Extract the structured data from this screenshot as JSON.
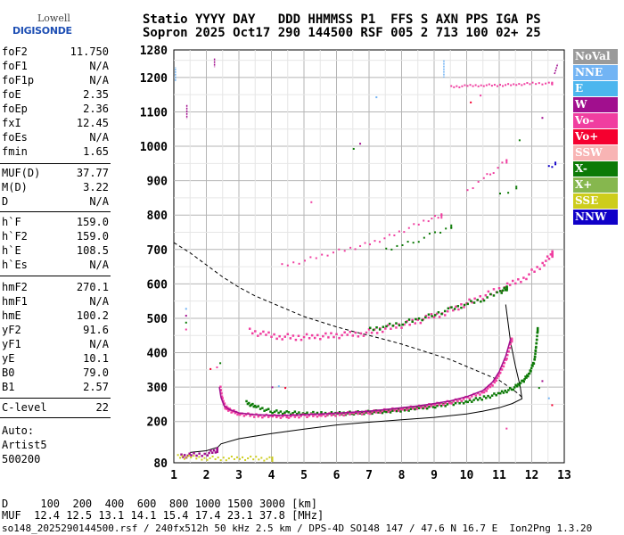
{
  "logo": {
    "line1": "Lowell",
    "line2": "DIGISONDE"
  },
  "header": {
    "line1": "Statio YYYY DAY   DDD HHMMSS P1  FFS S AXN PPS IGA PS",
    "line2": "Sopron 2025 Oct17 290 144500 RSF 005 2 713 100 02+ 25"
  },
  "params": [
    [
      {
        "k": "foF2",
        "v": "11.750"
      },
      {
        "k": "foF1",
        "v": "N/A"
      },
      {
        "k": "foF1p",
        "v": "N/A"
      },
      {
        "k": "foE",
        "v": "2.35"
      },
      {
        "k": "foEp",
        "v": "2.36"
      },
      {
        "k": "fxI",
        "v": "12.45"
      },
      {
        "k": "foEs",
        "v": "N/A"
      },
      {
        "k": "fmin",
        "v": "1.65"
      }
    ],
    [
      {
        "k": "MUF(D)",
        "v": "37.77"
      },
      {
        "k": "M(D)",
        "v": "3.22"
      },
      {
        "k": "D",
        "v": "N/A"
      }
    ],
    [
      {
        "k": "h`F",
        "v": "159.0"
      },
      {
        "k": "h`F2",
        "v": "159.0"
      },
      {
        "k": "h`E",
        "v": "108.5"
      },
      {
        "k": "h`Es",
        "v": "N/A"
      }
    ],
    [
      {
        "k": "hmF2",
        "v": "270.1"
      },
      {
        "k": "hmF1",
        "v": "N/A"
      },
      {
        "k": "hmE",
        "v": "100.2"
      },
      {
        "k": "yF2",
        "v": "91.6"
      },
      {
        "k": "yF1",
        "v": "N/A"
      },
      {
        "k": "yE",
        "v": "10.1"
      },
      {
        "k": "B0",
        "v": "79.0"
      },
      {
        "k": "B1",
        "v": "2.57"
      }
    ],
    [
      {
        "k": "C-level",
        "v": "22"
      }
    ]
  ],
  "auto": {
    "line1": "Auto:",
    "line2": "Artist5",
    "line3": "500200"
  },
  "legend": [
    {
      "label": "NoVal",
      "color": "#9a9a9a"
    },
    {
      "label": "NNE",
      "color": "#72b4f4"
    },
    {
      "label": "E",
      "color": "#4cb6ee"
    },
    {
      "label": "W",
      "color": "#a10f8e"
    },
    {
      "label": "Vo-",
      "color": "#f03ea0"
    },
    {
      "label": "Vo+",
      "color": "#f5002f"
    },
    {
      "label": "SSW",
      "color": "#f8b4b4"
    },
    {
      "label": "X-",
      "color": "#0c7a06"
    },
    {
      "label": "X+",
      "color": "#86b74e"
    },
    {
      "label": "SSE",
      "color": "#cdcd1c"
    },
    {
      "label": "NNW",
      "color": "#1000c8"
    }
  ],
  "footer": {
    "line1": "D     100  200  400  600  800 1000 1500 3000 [km]",
    "line2": "MUF  12.4 12.5 13.1 14.1 15.4 17.4 23.1 37.8 [MHz]",
    "line3": "so148_2025290144500.rsf / 240fx512h 50 kHz 2.5 km / DPS-4D SO148 147 / 47.6 N 16.7 E  Ion2Png 1.3.20"
  },
  "chart_data": {
    "type": "scatter",
    "xlabel": "",
    "ylabel": "",
    "xlim": [
      1,
      13
    ],
    "ylim": [
      80,
      1280
    ],
    "xticks": [
      1,
      2,
      3,
      4,
      5,
      6,
      7,
      8,
      9,
      10,
      11,
      12,
      13
    ],
    "yticks": [
      80,
      200,
      300,
      400,
      500,
      600,
      700,
      800,
      900,
      1000,
      1100,
      1200,
      1280
    ],
    "grid": true,
    "o_trace": [
      [
        2.4,
        300
      ],
      [
        2.45,
        270
      ],
      [
        2.55,
        245
      ],
      [
        2.7,
        235
      ],
      [
        3,
        225
      ],
      [
        3.5,
        220
      ],
      [
        4,
        218
      ],
      [
        4.5,
        218
      ],
      [
        5,
        220
      ],
      [
        5.5,
        222
      ],
      [
        6,
        224
      ],
      [
        6.5,
        227
      ],
      [
        7,
        230
      ],
      [
        7.5,
        235
      ],
      [
        8,
        240
      ],
      [
        8.5,
        245
      ],
      [
        9,
        252
      ],
      [
        9.5,
        260
      ],
      [
        10,
        272
      ],
      [
        10.5,
        290
      ],
      [
        10.8,
        315
      ],
      [
        11,
        345
      ],
      [
        11.2,
        390
      ],
      [
        11.35,
        440
      ]
    ],
    "x_trace": [
      [
        3.2,
        258
      ],
      [
        3.5,
        245
      ],
      [
        4,
        232
      ],
      [
        4.5,
        228
      ],
      [
        5,
        227
      ],
      [
        5.5,
        226
      ],
      [
        6,
        226
      ],
      [
        6.5,
        228
      ],
      [
        7,
        230
      ],
      [
        7.5,
        233
      ],
      [
        8,
        237
      ],
      [
        8.5,
        242
      ],
      [
        9,
        248
      ],
      [
        9.5,
        255
      ],
      [
        10,
        262
      ],
      [
        10.5,
        272
      ],
      [
        11,
        285
      ],
      [
        11.4,
        300
      ],
      [
        11.7,
        320
      ],
      [
        11.9,
        345
      ],
      [
        12.05,
        380
      ],
      [
        12.1,
        420
      ],
      [
        12.15,
        470
      ]
    ],
    "o_high": [
      [
        3.3,
        465
      ],
      [
        3.8,
        455
      ],
      [
        4.3,
        450
      ],
      [
        4.8,
        448
      ],
      [
        5.3,
        450
      ],
      [
        5.8,
        452
      ],
      [
        6.3,
        455
      ],
      [
        6.8,
        460
      ],
      [
        7.3,
        470
      ],
      [
        7.8,
        480
      ],
      [
        8.3,
        490
      ],
      [
        8.8,
        505
      ],
      [
        9.3,
        520
      ],
      [
        9.8,
        540
      ],
      [
        10.3,
        560
      ],
      [
        10.8,
        580
      ],
      [
        11.3,
        600
      ],
      [
        11.8,
        625
      ],
      [
        12.3,
        660
      ],
      [
        12.6,
        690
      ]
    ],
    "x_high": [
      [
        7,
        470
      ],
      [
        7.5,
        480
      ],
      [
        8,
        490
      ],
      [
        8.5,
        500
      ],
      [
        9,
        515
      ],
      [
        9.5,
        530
      ],
      [
        10,
        545
      ],
      [
        10.5,
        560
      ],
      [
        11,
        580
      ],
      [
        11.2,
        590
      ]
    ],
    "o_third": [
      [
        4.3,
        655
      ],
      [
        5,
        670
      ],
      [
        5.7,
        690
      ],
      [
        6.4,
        705
      ],
      [
        7,
        720
      ],
      [
        7.6,
        740
      ],
      [
        8.2,
        765
      ],
      [
        8.8,
        790
      ],
      [
        9.2,
        800
      ]
    ],
    "x_third": [
      [
        7.5,
        700
      ],
      [
        8,
        715
      ],
      [
        8.5,
        730
      ],
      [
        9,
        750
      ],
      [
        9.5,
        770
      ]
    ],
    "o_upper": [
      [
        10,
        870
      ],
      [
        10.5,
        910
      ],
      [
        10.8,
        930
      ],
      [
        11.2,
        960
      ]
    ],
    "x_upper": [
      [
        11,
        860
      ],
      [
        11.5,
        880
      ]
    ],
    "nnw_upper": [
      [
        12.5,
        940
      ],
      [
        12.7,
        950
      ]
    ],
    "pink_1180": [
      [
        9.5,
        1175
      ],
      [
        10,
        1178
      ],
      [
        10.5,
        1180
      ],
      [
        11,
        1180
      ],
      [
        11.5,
        1182
      ],
      [
        12,
        1185
      ],
      [
        12.6,
        1185
      ]
    ],
    "profile": [
      [
        1.5,
        110
      ],
      [
        2,
        115
      ],
      [
        2.35,
        125
      ],
      [
        2.45,
        135
      ],
      [
        3,
        150
      ],
      [
        4,
        165
      ],
      [
        5,
        178
      ],
      [
        6,
        190
      ],
      [
        7,
        198
      ],
      [
        8,
        205
      ],
      [
        9,
        212
      ],
      [
        10,
        222
      ],
      [
        10.5,
        230
      ],
      [
        11,
        240
      ],
      [
        11.4,
        252
      ],
      [
        11.7,
        266
      ],
      [
        11.65,
        300
      ],
      [
        11.5,
        360
      ],
      [
        11.35,
        430
      ],
      [
        11.2,
        540
      ]
    ],
    "model": [
      [
        1,
        720
      ],
      [
        1.5,
        690
      ],
      [
        2,
        655
      ],
      [
        2.5,
        620
      ],
      [
        3,
        590
      ],
      [
        3.5,
        565
      ],
      [
        4,
        545
      ],
      [
        4.5,
        525
      ],
      [
        5,
        505
      ],
      [
        5.5,
        490
      ],
      [
        6,
        475
      ],
      [
        6.5,
        462
      ],
      [
        7,
        450
      ],
      [
        7.5,
        438
      ],
      [
        8,
        425
      ],
      [
        8.5,
        410
      ],
      [
        9,
        395
      ],
      [
        9.5,
        380
      ],
      [
        10,
        360
      ],
      [
        10.5,
        340
      ],
      [
        11,
        320
      ],
      [
        11.3,
        300
      ],
      [
        11.6,
        280
      ],
      [
        11.7,
        270
      ]
    ],
    "e_layer": [
      [
        1.2,
        102
      ],
      [
        1.5,
        105
      ],
      [
        2,
        110
      ],
      [
        2.3,
        120
      ]
    ],
    "sse": [
      [
        1.1,
        100
      ],
      [
        1.5,
        98
      ],
      [
        2,
        96
      ],
      [
        2.5,
        95
      ],
      [
        3,
        96
      ],
      [
        3.5,
        95
      ],
      [
        4,
        93
      ]
    ],
    "e_spikes": [
      [
        1.4,
        1120
      ],
      [
        1.4,
        1080
      ],
      [
        1.05,
        1190
      ],
      [
        1.05,
        1230
      ],
      [
        2.25,
        1255
      ],
      [
        2.25,
        1230
      ],
      [
        9.3,
        1250
      ],
      [
        9.3,
        1200
      ],
      [
        12.7,
        1210
      ],
      [
        12.8,
        1240
      ]
    ],
    "misc_dots": [
      [
        1.35,
        470
      ],
      [
        1.35,
        490
      ],
      [
        1.35,
        510
      ],
      [
        1.35,
        530
      ],
      [
        2.1,
        355
      ],
      [
        2.3,
        360
      ],
      [
        2.4,
        372
      ],
      [
        4,
        302
      ],
      [
        4.2,
        305
      ],
      [
        4.4,
        300
      ],
      [
        5.2,
        840
      ],
      [
        6.5,
        995
      ],
      [
        6.7,
        1010
      ],
      [
        7.2,
        1145
      ],
      [
        10.1,
        1130
      ],
      [
        10.4,
        1150
      ],
      [
        11.6,
        1020
      ],
      [
        12.3,
        1085
      ],
      [
        12.5,
        270
      ],
      [
        12.6,
        250
      ],
      [
        11.2,
        182
      ],
      [
        12.2,
        300
      ],
      [
        12.3,
        320
      ]
    ]
  }
}
